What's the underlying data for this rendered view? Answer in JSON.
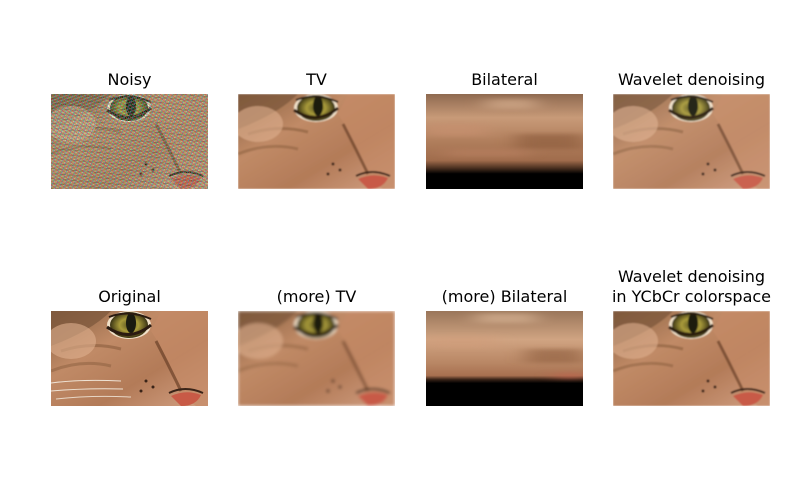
{
  "panels": {
    "noisy": {
      "title": "Noisy"
    },
    "tv": {
      "title": "TV"
    },
    "bilateral": {
      "title": "Bilateral"
    },
    "wavelet": {
      "title": "Wavelet denoising"
    },
    "original": {
      "title": "Original"
    },
    "more_tv": {
      "title": "(more) TV"
    },
    "more_bilateral": {
      "title": "(more) Bilateral"
    },
    "wavelet_ycbcr": {
      "title": "Wavelet denoising\nin YCbCr colorspace"
    }
  },
  "colors": {
    "fur_dark": "#6b4a32",
    "fur_mid": "#b07a55",
    "fur_light": "#d6a383",
    "eye_iris": "#a89a3a",
    "pupil": "#1a1a10",
    "nose": "#c85a46",
    "band_black": "#000000"
  }
}
